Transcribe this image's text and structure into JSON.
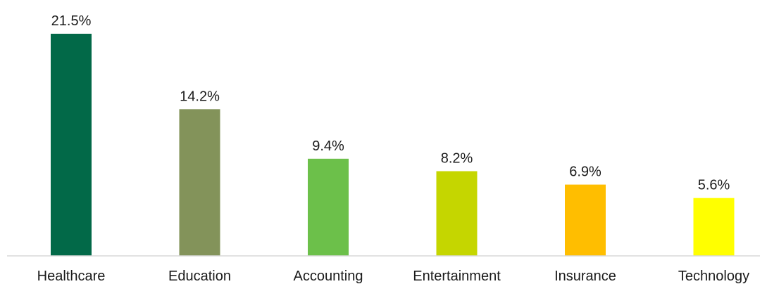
{
  "chart_data": {
    "type": "bar",
    "categories": [
      "Healthcare",
      "Education",
      "Accounting",
      "Entertainment",
      "Insurance",
      "Technology"
    ],
    "values": [
      21.5,
      14.2,
      9.4,
      8.2,
      6.9,
      5.6
    ],
    "value_labels": [
      "21.5%",
      "14.2%",
      "9.4%",
      "8.2%",
      "6.9%",
      "5.6%"
    ],
    "colors": [
      "#026948",
      "#83935a",
      "#6cc04a",
      "#c5d600",
      "#ffbe00",
      "#ffff00"
    ],
    "axis_color": "#d9d9d9",
    "ylim": [
      0,
      21.5
    ],
    "grid": false,
    "legend": "none"
  }
}
